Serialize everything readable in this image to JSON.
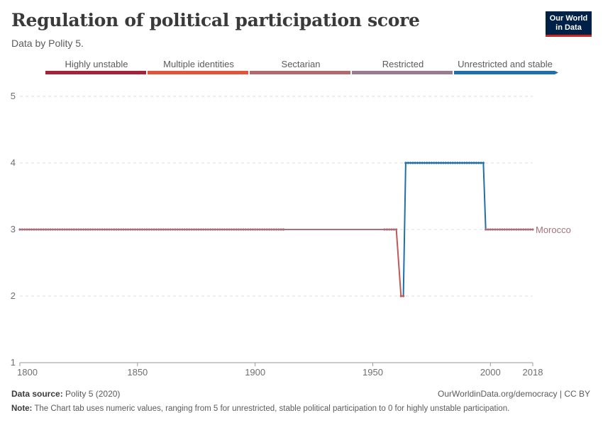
{
  "header": {
    "title": "Regulation of political participation score",
    "subtitle": "Data by Polity 5.",
    "logo_line1": "Our World",
    "logo_line2": "in Data"
  },
  "legend": [
    {
      "label": "Highly unstable",
      "color": "#a2233a"
    },
    {
      "label": "Multiple identities",
      "color": "#e0553a"
    },
    {
      "label": "Sectarian",
      "color": "#b06a6e"
    },
    {
      "label": "Restricted",
      "color": "#9a7a8e"
    },
    {
      "label": "Unrestricted and stable",
      "color": "#1f6fa8"
    }
  ],
  "chart_data": {
    "type": "line",
    "xlim": [
      1800,
      2018
    ],
    "ylim": [
      1,
      5
    ],
    "x_ticks": [
      1800,
      1850,
      1900,
      1950,
      2000,
      2018
    ],
    "y_ticks": [
      1,
      2,
      3,
      4,
      5
    ],
    "grid": true,
    "series": [
      {
        "name": "Morocco",
        "points": [
          [
            1800,
            3
          ],
          [
            1912,
            3
          ],
          [
            1955,
            3
          ],
          [
            1960,
            3
          ],
          [
            1962,
            2
          ],
          [
            1963,
            2
          ],
          [
            1964,
            4
          ],
          [
            1997,
            4
          ],
          [
            1998,
            3
          ],
          [
            2018,
            3
          ]
        ]
      }
    ],
    "colors": {
      "score_2": "#c0585a",
      "score_3": "#a8707a",
      "score_4": "#1f6fa8"
    }
  },
  "footer": {
    "source_label": "Data source:",
    "source_text": "Polity 5 (2020)",
    "url": "OurWorldinData.org/democracy | CC BY",
    "note_label": "Note:",
    "note_text": "The Chart tab uses numeric values, ranging from 5 for unrestricted, stable political participation to 0 for highly unstable participation."
  }
}
